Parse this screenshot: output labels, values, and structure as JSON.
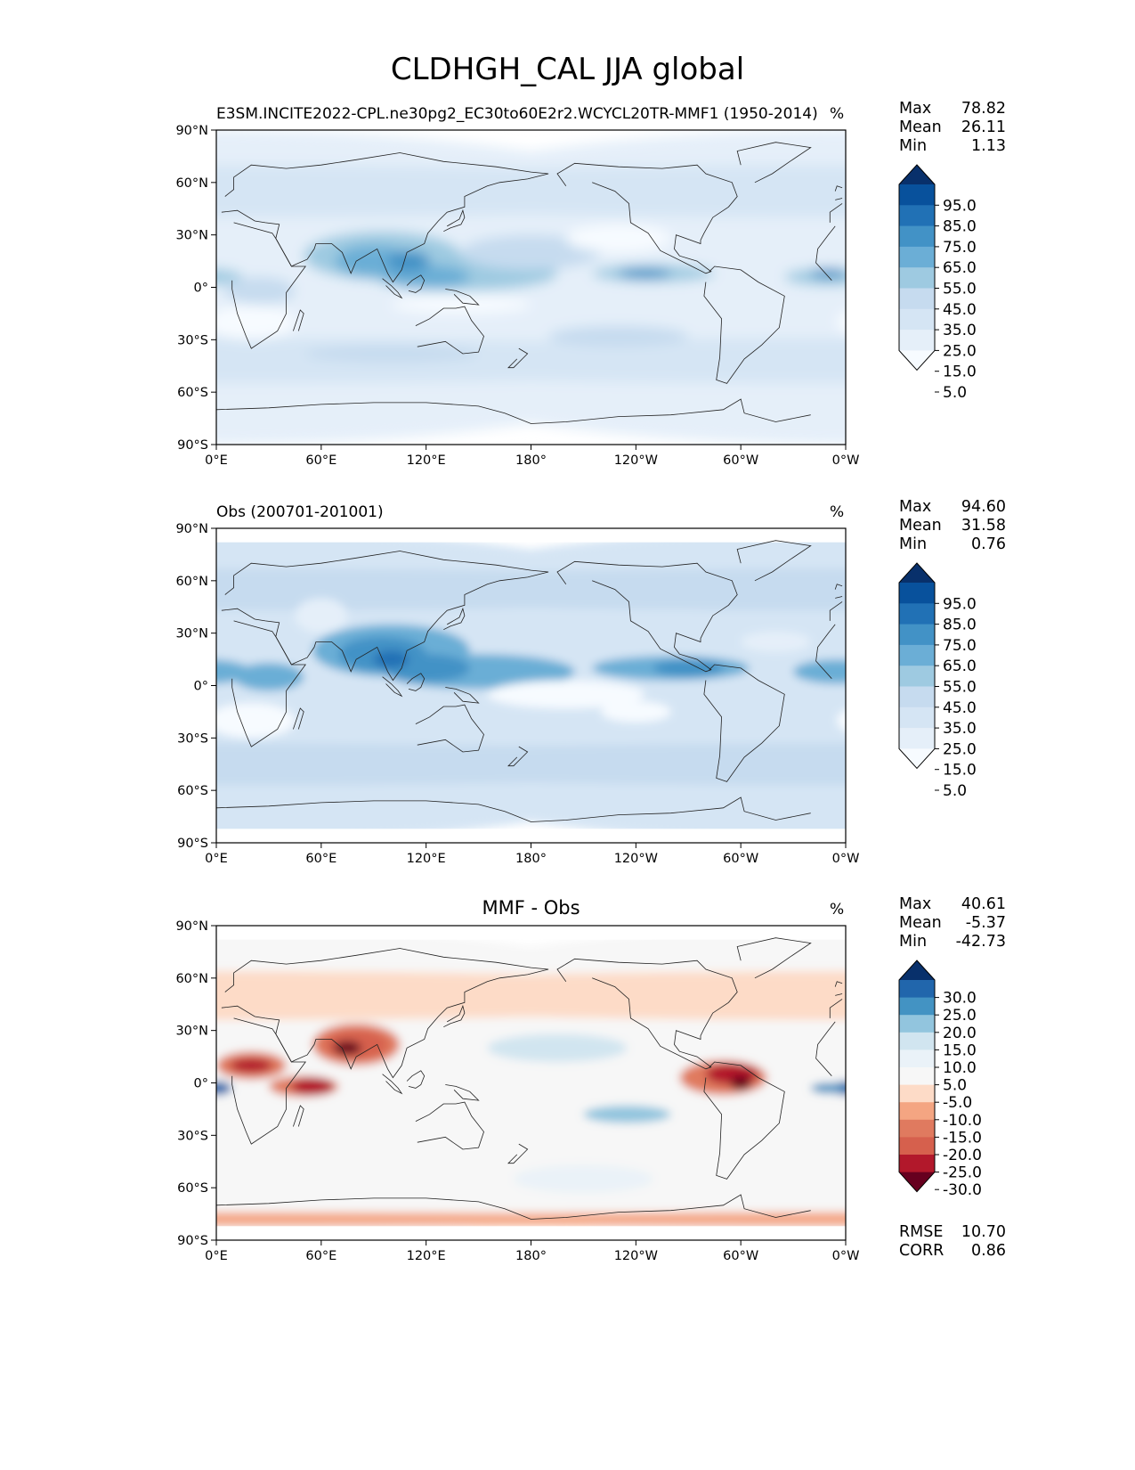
{
  "chart_data": {
    "type": "heatmap",
    "title": "CLDHGH_CAL JJA global",
    "x_tick_labels": [
      "0°E",
      "60°E",
      "120°E",
      "180°",
      "120°W",
      "60°W",
      "0°W"
    ],
    "y_tick_labels": [
      "90°N",
      "60°N",
      "30°N",
      "0°",
      "30°S",
      "60°S",
      "90°S"
    ],
    "panels": [
      {
        "title": "E3SM.INCITE2022-CPL.ne30pg2_EC30to60E2r2.WCYCL20TR-MMF1 (1950-2014)",
        "units": "%",
        "stats": {
          "max_label": "Max",
          "max": "78.82",
          "mean_label": "Mean",
          "mean": "26.11",
          "min_label": "Min",
          "min": "1.13"
        },
        "colorbar_ticks": [
          "95.0",
          "85.0",
          "75.0",
          "65.0",
          "55.0",
          "45.0",
          "35.0",
          "25.0",
          "15.0",
          "5.0"
        ],
        "colors": [
          "#08306b",
          "#08519c",
          "#2171b5",
          "#4292c6",
          "#6baed6",
          "#9ecae1",
          "#c6dbef",
          "#d5e5f4",
          "#e5eff9",
          "#f7fbff"
        ],
        "lat_range": [
          -90,
          90
        ]
      },
      {
        "title": "Obs (200701-201001)",
        "units": "%",
        "stats": {
          "max_label": "Max",
          "max": "94.60",
          "mean_label": "Mean",
          "mean": "31.58",
          "min_label": "Min",
          "min": "0.76"
        },
        "colorbar_ticks": [
          "95.0",
          "85.0",
          "75.0",
          "65.0",
          "55.0",
          "45.0",
          "35.0",
          "25.0",
          "15.0",
          "5.0"
        ],
        "colors": [
          "#08306b",
          "#08519c",
          "#2171b5",
          "#4292c6",
          "#6baed6",
          "#9ecae1",
          "#c6dbef",
          "#d5e5f4",
          "#e5eff9",
          "#f7fbff"
        ],
        "lat_range": [
          -82,
          82
        ]
      },
      {
        "title": "MMF - Obs",
        "units": "%",
        "stats": {
          "max_label": "Max",
          "max": "40.61",
          "mean_label": "Mean",
          "mean": "-5.37",
          "min_label": "Min",
          "min": "-42.73"
        },
        "colorbar_ticks": [
          "30.0",
          "25.0",
          "20.0",
          "15.0",
          "10.0",
          "5.0",
          "-5.0",
          "-10.0",
          "-15.0",
          "-20.0",
          "-25.0",
          "-30.0"
        ],
        "colors": [
          "#08306b",
          "#2166ac",
          "#4393c3",
          "#92c5de",
          "#d1e5f0",
          "#eaf2f8",
          "#f7f7f7",
          "#fddbc7",
          "#f4a582",
          "#e07a5f",
          "#d6604d",
          "#b2182b",
          "#67001f"
        ],
        "lat_range": [
          -82,
          82
        ],
        "metrics": {
          "rmse_label": "RMSE",
          "rmse": "10.70",
          "corr_label": "CORR",
          "corr": "0.86"
        }
      }
    ]
  }
}
